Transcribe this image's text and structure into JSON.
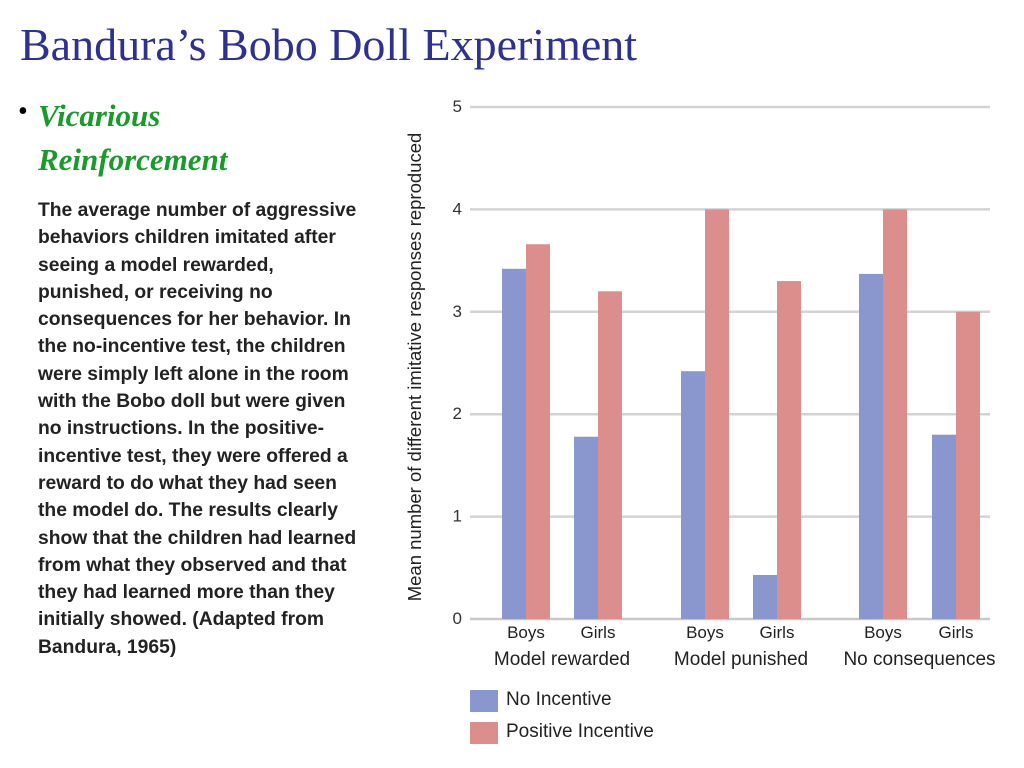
{
  "slide": {
    "title": "Bandura’s Bobo Doll Experiment",
    "bullet_symbol": "•",
    "bullet_heading": "Vicarious Reinforcement",
    "body": "The average number of aggressive behaviors children imitated after seeing a model rewarded, punished, or receiving no consequences for her behavior. In the no-incentive test, the children were simply left alone in the room with the Bobo doll but were given no instructions. In the positive-incentive test, they were offered a reward to do what they had seen the model do. The results clearly show that the children had learned from what they observed and that they had learned more than they initially showed. (Adapted from Bandura, 1965)"
  },
  "chart_data": {
    "type": "bar",
    "ylabel": "Mean number of different imitative responses reproduced",
    "ylim": [
      0,
      5
    ],
    "yticks": [
      0,
      1,
      2,
      3,
      4,
      5
    ],
    "grid": true,
    "legend_position": "bottom-left",
    "groups": [
      {
        "label": "Model rewarded",
        "categories": [
          "Boys",
          "Girls"
        ]
      },
      {
        "label": "Model punished",
        "categories": [
          "Boys",
          "Girls"
        ]
      },
      {
        "label": "No consequences",
        "categories": [
          "Boys",
          "Girls"
        ]
      }
    ],
    "series": [
      {
        "name": "No Incentive",
        "color": "#8a97cf",
        "values": [
          3.42,
          1.78,
          2.42,
          0.43,
          3.37,
          1.8
        ]
      },
      {
        "name": "Positive Incentive",
        "color": "#db8e8c",
        "values": [
          3.66,
          3.2,
          4.0,
          3.3,
          4.0,
          3.0
        ]
      }
    ]
  }
}
